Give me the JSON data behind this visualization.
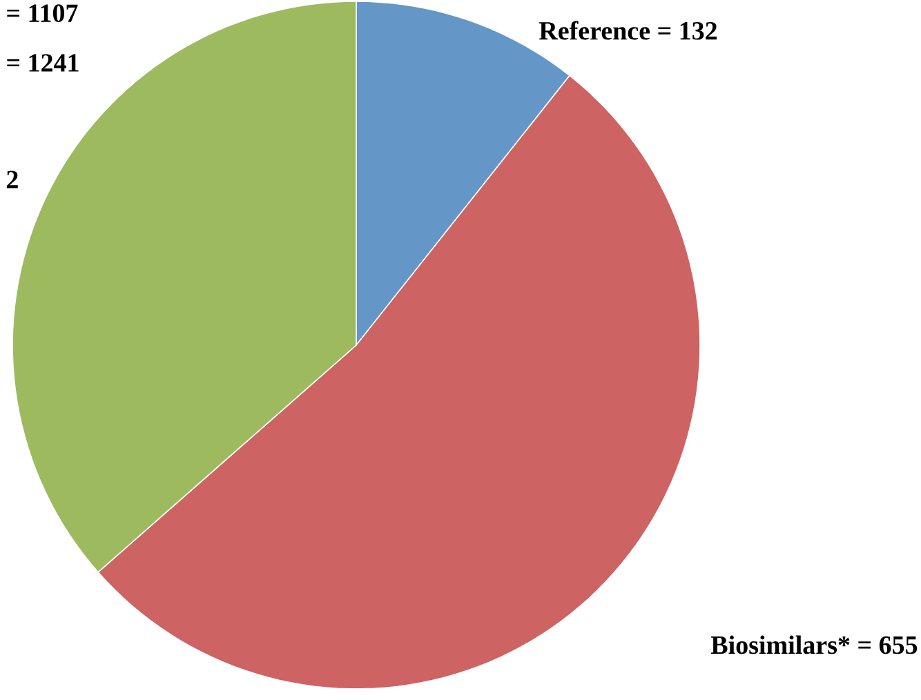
{
  "chart_data": {
    "type": "pie",
    "categories": [
      "Reference = 132",
      "Biosimilars* = 655",
      "2"
    ],
    "values": [
      132,
      655,
      452
    ],
    "colors": [
      "#6497c8",
      "#cd6363",
      "#9dbb5e"
    ],
    "annotations": [
      "= 1107",
      "= 1241"
    ]
  }
}
